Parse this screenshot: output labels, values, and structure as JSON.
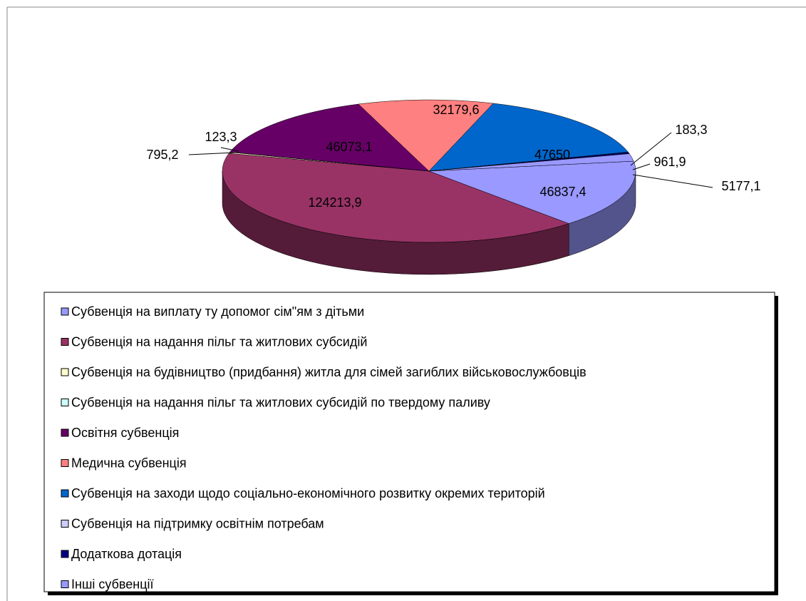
{
  "chart_data": {
    "type": "pie",
    "categories": [
      "Субвенція на виплату ту допомог сім\"ям з дітьми",
      "Субвенція на надання пільг та житлових субсидій",
      "Субвенція на будівництво (придбання) житла для сімей загиблих військовослужбовців",
      "Субвенція на надання пільг та житлових субсидій по твердому паливу",
      "Освітня субвенція",
      "Медична субвенція",
      "Субвенція на заходи щодо соціально-економічного розвитку окремих територій",
      "Субвенція на підтримку освітнім потребам",
      "Додаткова дотація",
      "Інші субвенції"
    ],
    "values": [
      46837.4,
      124213.9,
      795.2,
      123.3,
      46073.1,
      32179.6,
      47650,
      183.3,
      961.9,
      5177.1
    ],
    "value_labels": [
      "46837,4",
      "124213,9",
      "795,2",
      "123,3",
      "46073,1",
      "32179,6",
      "47650",
      "183,3",
      "961,9",
      "5177,1"
    ],
    "colors": [
      "#9999ff",
      "#993366",
      "#ffffcc",
      "#ccffff",
      "#660066",
      "#ff8080",
      "#0066cc",
      "#ccccff",
      "#000080",
      "#9999ff"
    ],
    "legend": "bottom"
  }
}
